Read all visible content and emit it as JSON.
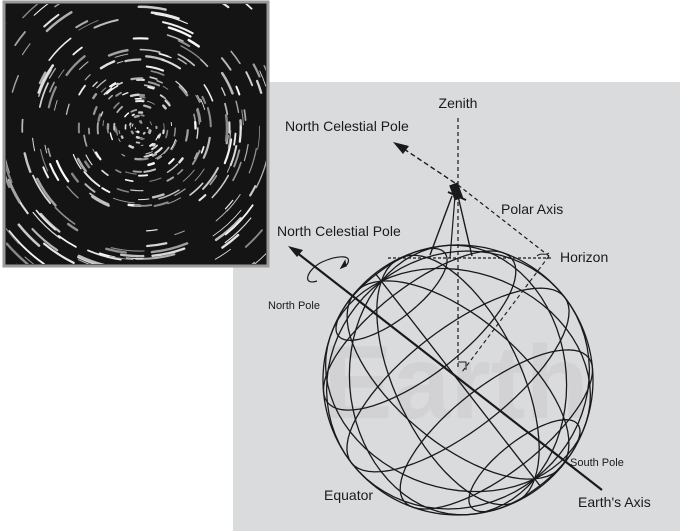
{
  "labels": {
    "zenith": "Zenith",
    "north_celestial_pole_top": "North Celestial Pole",
    "polar_axis": "Polar Axis",
    "north_celestial_pole_left": "North Celestial Pole",
    "horizon": "Horizon",
    "north_pole": "North Pole",
    "earth_watermark": "Earth",
    "south_pole": "South Pole",
    "equator": "Equator",
    "earths_axis": "Earth's Axis"
  },
  "colors": {
    "panel": "#dadbdd",
    "lines": "#1a1a1a",
    "watermark": "#d2d2d4",
    "photo_bg": "#141414",
    "photo_border": "#9a9a9a"
  },
  "photo": {
    "description_icon": "star-trails-photo"
  }
}
